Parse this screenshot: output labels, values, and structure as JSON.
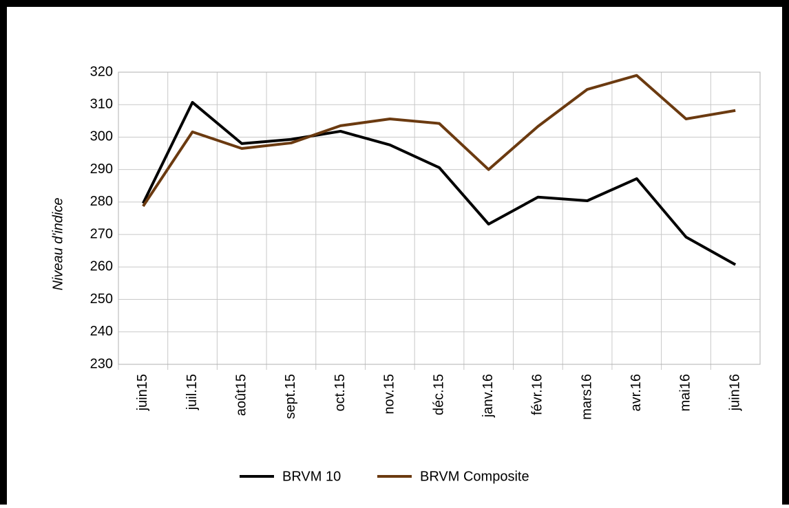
{
  "chart_data": {
    "type": "line",
    "y_label": "Niveau d'indice",
    "categories": [
      "juin15",
      "juil.15",
      "août15",
      "sept.15",
      "oct.15",
      "nov.15",
      "déc.15",
      "janv.16",
      "févr.16",
      "mars16",
      "avr.16",
      "mai16",
      "juin16"
    ],
    "series": [
      {
        "name": "BRVM 10",
        "color": "#000000",
        "values": [
          279.6,
          310.7,
          298,
          299.3,
          301.8,
          297.6,
          290.6,
          273.2,
          281.5,
          280.4,
          287.2,
          269.2,
          260.7
        ]
      },
      {
        "name": "BRVM Composite",
        "color": "#6b3a10",
        "values": [
          278.7,
          301.6,
          296.5,
          298.2,
          303.5,
          305.6,
          304.2,
          290,
          303.3,
          314.7,
          319,
          305.6,
          308.2
        ]
      }
    ],
    "ylim": [
      230,
      320
    ],
    "yticks": [
      230,
      240,
      250,
      260,
      270,
      280,
      290,
      300,
      310,
      320
    ],
    "grid": true,
    "legend": "bottom"
  }
}
